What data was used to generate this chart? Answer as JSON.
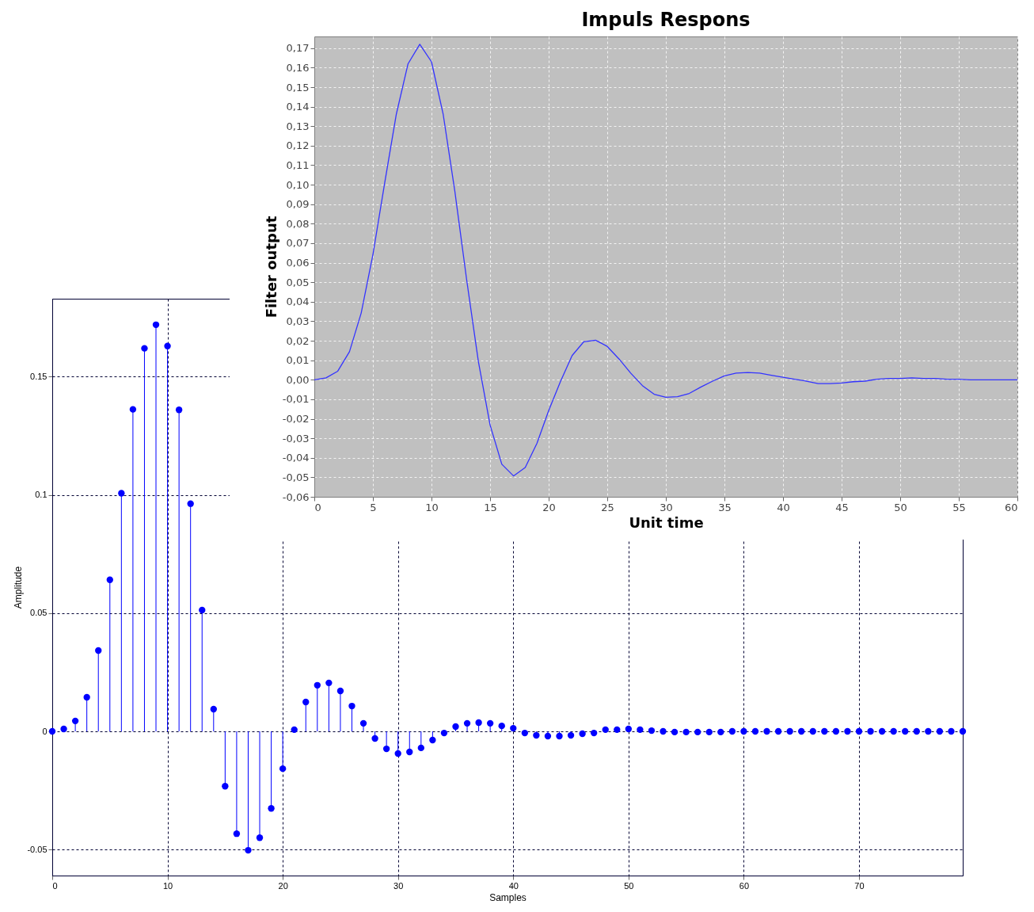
{
  "chart_data": [
    {
      "type": "lollipop",
      "xlabel": "Samples",
      "ylabel": "Amplitude",
      "color": "#0000ff",
      "marker": "circle",
      "grid": true,
      "x": [
        0,
        1,
        2,
        3,
        4,
        5,
        6,
        7,
        8,
        9,
        10,
        11,
        12,
        13,
        14,
        15,
        16,
        17,
        18,
        19,
        20,
        21,
        22,
        23,
        24,
        25,
        26,
        27,
        28,
        29,
        30,
        31,
        32,
        33,
        34,
        35,
        36,
        37,
        38,
        39,
        40,
        41,
        42,
        43,
        44,
        45,
        46,
        47,
        48,
        49,
        50,
        51,
        52,
        53,
        54,
        55,
        56,
        57,
        58,
        59,
        60,
        61,
        62,
        63,
        64,
        65,
        66,
        67,
        68,
        69,
        70,
        71,
        72,
        73,
        74,
        75,
        76,
        77,
        78,
        79
      ],
      "values": [
        0,
        0.001,
        0.0044,
        0.0144,
        0.0342,
        0.0641,
        0.1007,
        0.1362,
        0.162,
        0.172,
        0.163,
        0.136,
        0.0963,
        0.0513,
        0.0094,
        -0.0232,
        -0.0433,
        -0.0503,
        -0.045,
        -0.0326,
        -0.0158,
        0.0007,
        0.0124,
        0.0195,
        0.0205,
        0.0171,
        0.0107,
        0.0034,
        -0.003,
        -0.0074,
        -0.0094,
        -0.0087,
        -0.007,
        -0.0037,
        -0.0007,
        0.002,
        0.0034,
        0.0037,
        0.0034,
        0.0023,
        0.0013,
        -0.0007,
        -0.0017,
        -0.002,
        -0.002,
        -0.0017,
        -0.001,
        -0.0007,
        0.0007,
        0.0007,
        0.001,
        0.0007,
        0.0003,
        0,
        -0.0003,
        -0.0003,
        -0.0003,
        -0.0003,
        -0.0003,
        0,
        0,
        0,
        0,
        0,
        0,
        0,
        0,
        0,
        0,
        0,
        0,
        0,
        0,
        0,
        0,
        0,
        0,
        0,
        0,
        0
      ],
      "xlim": [
        0,
        79
      ],
      "xticks": [
        0,
        10,
        20,
        30,
        40,
        50,
        60,
        70
      ],
      "ylim": [
        -0.061,
        0.183
      ],
      "yticks": [
        -0.05,
        0,
        0.05,
        0.1,
        0.15
      ]
    },
    {
      "type": "line",
      "title": "Impuls Respons",
      "xlabel": "Unit time",
      "ylabel": "Filter output",
      "color": "#3333ff",
      "grid": true,
      "x": [
        0,
        1,
        2,
        3,
        4,
        5,
        6,
        7,
        8,
        9,
        10,
        11,
        12,
        13,
        14,
        15,
        16,
        17,
        18,
        19,
        20,
        21,
        22,
        23,
        24,
        25,
        26,
        27,
        28,
        29,
        30,
        31,
        32,
        33,
        34,
        35,
        36,
        37,
        38,
        39,
        40,
        41,
        42,
        43,
        44,
        45,
        46,
        47,
        48,
        49,
        50,
        51,
        52,
        53,
        54,
        55,
        56,
        57,
        58,
        59,
        60
      ],
      "values": [
        0,
        0.001,
        0.0044,
        0.0144,
        0.0342,
        0.0641,
        0.1007,
        0.1362,
        0.162,
        0.172,
        0.163,
        0.136,
        0.0963,
        0.0513,
        0.0094,
        -0.0232,
        -0.0433,
        -0.0493,
        -0.045,
        -0.0326,
        -0.0158,
        -0.001,
        0.0124,
        0.0195,
        0.0203,
        0.0171,
        0.0107,
        0.0034,
        -0.003,
        -0.0074,
        -0.009,
        -0.0087,
        -0.007,
        -0.0037,
        -0.0007,
        0.002,
        0.0034,
        0.0037,
        0.0034,
        0.0023,
        0.0013,
        0.0003,
        -0.0007,
        -0.002,
        -0.002,
        -0.0017,
        -0.001,
        -0.0007,
        0.0003,
        0.0007,
        0.0007,
        0.001,
        0.0007,
        0.0007,
        0.0003,
        0.0003,
        0,
        0,
        0,
        0,
        0
      ],
      "xlim": [
        0,
        60
      ],
      "xticks": [
        0,
        5,
        10,
        15,
        20,
        25,
        30,
        35,
        40,
        45,
        50,
        55,
        60
      ],
      "ylim": [
        -0.06,
        0.176
      ],
      "yticks": [
        {
          "value": -0.06,
          "label": "-0,06"
        },
        {
          "value": -0.05,
          "label": "-0,05"
        },
        {
          "value": -0.04,
          "label": "-0,04"
        },
        {
          "value": -0.03,
          "label": "-0,03"
        },
        {
          "value": -0.02,
          "label": "-0,02"
        },
        {
          "value": -0.01,
          "label": "-0,01"
        },
        {
          "value": 0,
          "label": "0,00"
        },
        {
          "value": 0.01,
          "label": "0,01"
        },
        {
          "value": 0.02,
          "label": "0,02"
        },
        {
          "value": 0.03,
          "label": "0,03"
        },
        {
          "value": 0.04,
          "label": "0,04"
        },
        {
          "value": 0.05,
          "label": "0,05"
        },
        {
          "value": 0.06,
          "label": "0,06"
        },
        {
          "value": 0.07,
          "label": "0,07"
        },
        {
          "value": 0.08,
          "label": "0,08"
        },
        {
          "value": 0.09,
          "label": "0,09"
        },
        {
          "value": 0.1,
          "label": "0,10"
        },
        {
          "value": 0.11,
          "label": "0,11"
        },
        {
          "value": 0.12,
          "label": "0,12"
        },
        {
          "value": 0.13,
          "label": "0,13"
        },
        {
          "value": 0.14,
          "label": "0,14"
        },
        {
          "value": 0.15,
          "label": "0,15"
        },
        {
          "value": 0.16,
          "label": "0,16"
        },
        {
          "value": 0.17,
          "label": "0,17"
        }
      ]
    }
  ]
}
